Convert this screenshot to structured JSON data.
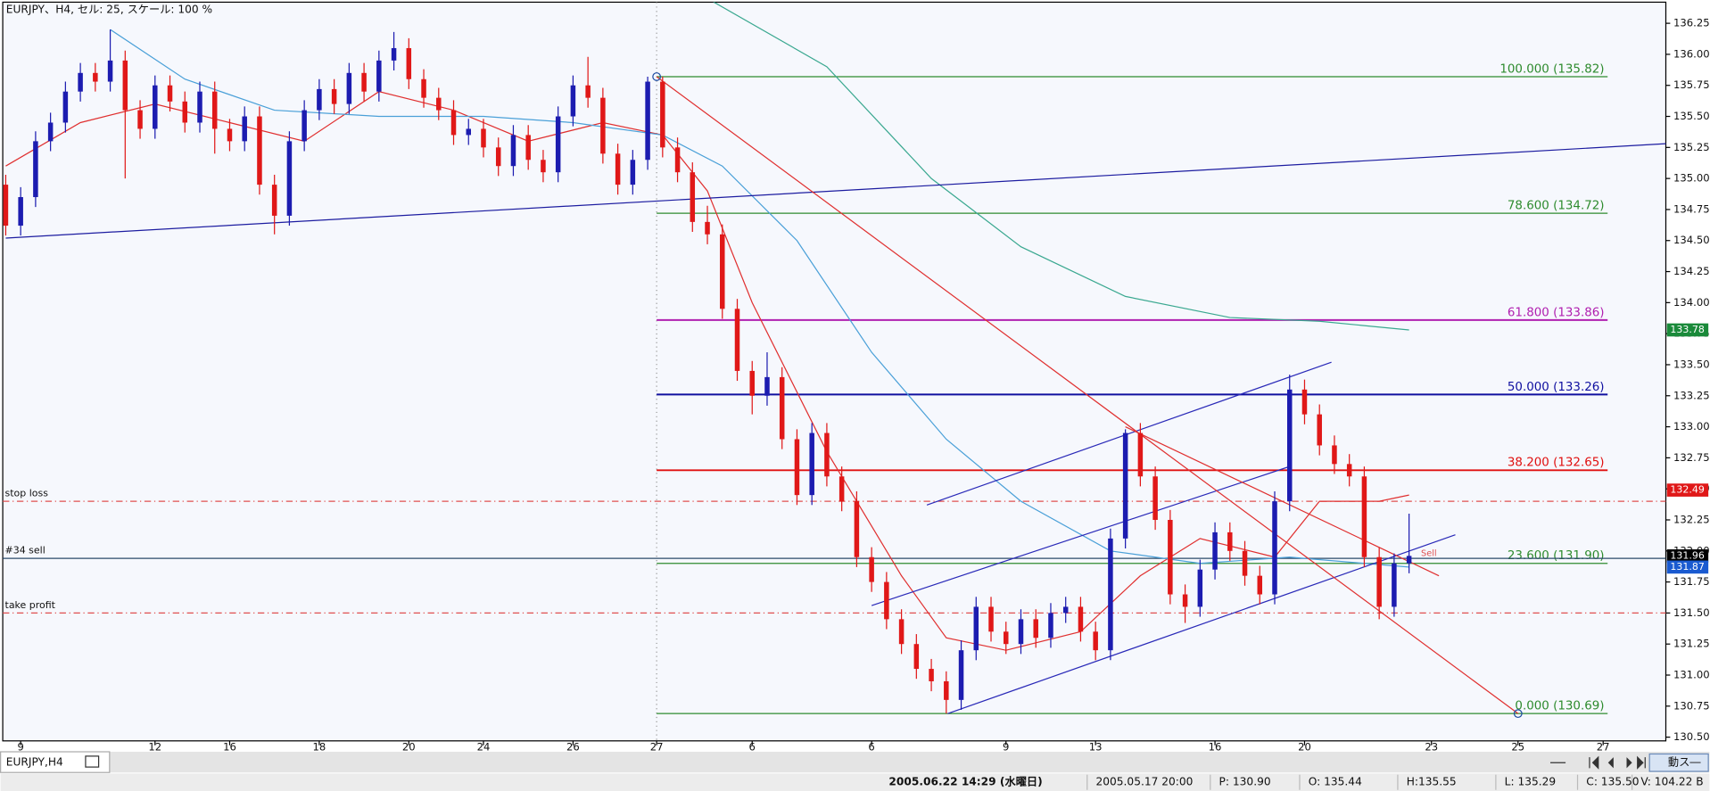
{
  "chart_data": {
    "type": "candlestick",
    "title": "EURJPY、H4, セル: 25, スケール: 100 %",
    "tab": "EURJPY,H4",
    "xlim": [
      -0.2,
      111.2
    ],
    "ylim": [
      130.47,
      136.42
    ],
    "up_color": "#1c1cb0",
    "down_color": "#e01818",
    "open": [
      134.95,
      134.62,
      134.85,
      135.3,
      135.45,
      135.7,
      135.85,
      135.78,
      135.95,
      135.55,
      135.4,
      135.75,
      135.62,
      135.45,
      135.7,
      135.4,
      135.3,
      135.5,
      134.95,
      134.7,
      135.3,
      135.55,
      135.72,
      135.6,
      135.85,
      135.7,
      135.95,
      136.05,
      135.8,
      135.65,
      135.55,
      135.35,
      135.4,
      135.25,
      135.1,
      135.35,
      135.15,
      135.05,
      135.5,
      135.75,
      135.65,
      135.2,
      134.95,
      135.15,
      135.78,
      135.25,
      135.05,
      134.65,
      134.55,
      133.95,
      133.45,
      133.25,
      133.4,
      132.9,
      132.45,
      132.95,
      132.6,
      132.4,
      131.95,
      131.75,
      131.45,
      131.25,
      131.05,
      130.95,
      130.8,
      131.2,
      131.55,
      131.35,
      131.25,
      131.45,
      131.3,
      131.5,
      131.55,
      131.35,
      131.2,
      132.1,
      132.95,
      132.6,
      132.25,
      131.65,
      131.55,
      131.85,
      132.15,
      132.0,
      131.8,
      131.65,
      132.4,
      133.3,
      133.1,
      132.85,
      132.7,
      132.6,
      131.95,
      131.55,
      131.9
    ],
    "high": [
      135.03,
      134.93,
      135.38,
      135.53,
      135.78,
      135.93,
      135.93,
      136.2,
      136.03,
      135.63,
      135.83,
      135.83,
      135.7,
      135.78,
      135.78,
      135.48,
      135.58,
      135.58,
      135.03,
      135.38,
      135.63,
      135.8,
      135.8,
      135.93,
      135.93,
      136.03,
      136.18,
      136.13,
      135.88,
      135.73,
      135.63,
      135.48,
      135.48,
      135.33,
      135.43,
      135.43,
      135.23,
      135.58,
      135.83,
      135.98,
      135.73,
      135.28,
      135.23,
      135.82,
      135.82,
      135.33,
      135.13,
      134.78,
      134.63,
      134.03,
      133.53,
      133.6,
      133.48,
      132.98,
      133.03,
      133.03,
      132.68,
      132.48,
      132.03,
      131.83,
      131.53,
      131.33,
      131.13,
      131.03,
      131.28,
      131.63,
      131.63,
      131.43,
      131.53,
      131.53,
      131.58,
      131.63,
      131.63,
      131.43,
      132.18,
      132.98,
      133.03,
      132.68,
      132.33,
      131.73,
      131.93,
      132.23,
      132.23,
      132.08,
      131.88,
      132.48,
      133.42,
      133.38,
      133.18,
      132.93,
      132.78,
      132.68,
      132.03,
      131.98,
      132.3
    ],
    "low": [
      134.54,
      134.54,
      134.77,
      135.22,
      135.37,
      135.62,
      135.7,
      135.7,
      135.0,
      135.32,
      135.32,
      135.54,
      135.37,
      135.37,
      135.2,
      135.22,
      135.22,
      134.87,
      134.55,
      134.62,
      135.22,
      135.47,
      135.52,
      135.52,
      135.62,
      135.62,
      135.87,
      135.72,
      135.57,
      135.47,
      135.27,
      135.27,
      135.17,
      135.02,
      135.02,
      135.07,
      134.97,
      134.97,
      135.42,
      135.57,
      135.12,
      134.87,
      134.87,
      135.07,
      135.17,
      134.97,
      134.57,
      134.47,
      133.87,
      133.37,
      133.1,
      133.17,
      132.82,
      132.37,
      132.37,
      132.52,
      132.32,
      131.87,
      131.67,
      131.37,
      131.17,
      130.97,
      130.87,
      130.69,
      130.72,
      131.12,
      131.27,
      131.17,
      131.17,
      131.22,
      131.22,
      131.42,
      131.27,
      131.12,
      131.12,
      132.02,
      132.52,
      132.17,
      131.57,
      131.42,
      131.47,
      131.77,
      131.92,
      131.72,
      131.57,
      131.57,
      132.32,
      133.02,
      132.77,
      132.62,
      132.52,
      131.87,
      131.45,
      131.47,
      131.82
    ],
    "close": [
      134.62,
      134.85,
      135.3,
      135.45,
      135.7,
      135.85,
      135.78,
      135.95,
      135.55,
      135.4,
      135.75,
      135.62,
      135.45,
      135.7,
      135.4,
      135.3,
      135.5,
      134.95,
      134.7,
      135.3,
      135.55,
      135.72,
      135.6,
      135.85,
      135.7,
      135.95,
      136.05,
      135.8,
      135.65,
      135.55,
      135.35,
      135.4,
      135.25,
      135.1,
      135.35,
      135.15,
      135.05,
      135.5,
      135.75,
      135.65,
      135.2,
      134.95,
      135.15,
      135.78,
      135.25,
      135.05,
      134.65,
      134.55,
      133.95,
      133.45,
      133.25,
      133.4,
      132.9,
      132.45,
      132.95,
      132.6,
      132.4,
      131.95,
      131.75,
      131.45,
      131.25,
      131.05,
      130.95,
      130.8,
      131.2,
      131.55,
      131.35,
      131.25,
      131.45,
      131.3,
      131.5,
      131.55,
      131.35,
      131.2,
      132.1,
      132.95,
      132.6,
      132.25,
      131.65,
      131.55,
      131.85,
      132.15,
      132.0,
      131.8,
      131.65,
      132.4,
      133.3,
      133.1,
      132.85,
      132.7,
      132.6,
      131.95,
      131.55,
      131.9,
      131.96
    ],
    "yticks": [
      136.25,
      {
        "value": 136.0,
        "label": "136.00"
      },
      135.75,
      {
        "value": 135.5,
        "label": "135.50"
      },
      135.25,
      {
        "value": 135.0,
        "label": "135.00"
      },
      134.75,
      {
        "value": 134.5,
        "label": "134.50"
      },
      134.25,
      {
        "value": 134.0,
        "label": "134.00"
      },
      133.75,
      {
        "value": 133.5,
        "label": "133.50"
      },
      133.25,
      {
        "value": 133.0,
        "label": "133.00"
      },
      132.75,
      {
        "value": 132.5,
        "label": "132.50"
      },
      132.25,
      {
        "value": 132.0,
        "label": "132.00"
      },
      131.75,
      {
        "value": 131.5,
        "label": "131.50"
      },
      131.25,
      {
        "value": 131.0,
        "label": "131.00"
      },
      130.75,
      {
        "value": 130.5,
        "label": "130.50"
      }
    ],
    "xticks": [
      {
        "value": 1,
        "label": "9"
      },
      {
        "value": 10,
        "label": "12"
      },
      {
        "value": 15,
        "label": "16"
      },
      {
        "value": 21,
        "label": "18"
      },
      {
        "value": 27,
        "label": "20"
      },
      {
        "value": 32,
        "label": "24"
      },
      {
        "value": 38,
        "label": "26"
      },
      {
        "value": 43.6,
        "label": "27"
      },
      {
        "value": 50,
        "label": "6"
      },
      {
        "value": 58,
        "label": "6"
      },
      {
        "value": 67,
        "label": "9"
      },
      {
        "value": 73,
        "label": "13"
      },
      {
        "value": 81,
        "label": "16"
      },
      {
        "value": 87,
        "label": "20"
      },
      {
        "value": 95.5,
        "label": "23"
      },
      {
        "value": 101.3,
        "label": "25"
      },
      {
        "value": 107,
        "label": "27"
      }
    ],
    "moving_averages": [
      {
        "color": "#e03030",
        "x": [
          0,
          5,
          10,
          15,
          20,
          25,
          30,
          35,
          40,
          44,
          47,
          50,
          55,
          60,
          63,
          67,
          72,
          76,
          80,
          85,
          88,
          92,
          94
        ],
        "values": [
          135.1,
          135.45,
          135.6,
          135.45,
          135.3,
          135.7,
          135.55,
          135.3,
          135.45,
          135.35,
          134.9,
          134.0,
          132.8,
          131.8,
          131.3,
          131.2,
          131.35,
          131.8,
          132.1,
          131.95,
          132.4,
          132.4,
          132.45
        ]
      },
      {
        "color": "#4aa0d8",
        "x": [
          7,
          12,
          18,
          25,
          32,
          38,
          44,
          48,
          53,
          58,
          63,
          68,
          74,
          80,
          86,
          94
        ],
        "values": [
          136.2,
          135.8,
          135.55,
          135.5,
          135.5,
          135.45,
          135.35,
          135.1,
          134.5,
          133.6,
          132.9,
          132.4,
          132.0,
          131.9,
          131.95,
          131.87
        ]
      },
      {
        "color": "#3aa890",
        "x": [
          47,
          55,
          62,
          68,
          75,
          82,
          88,
          94
        ],
        "values": [
          136.45,
          135.9,
          135.0,
          134.45,
          134.05,
          133.88,
          133.85,
          133.78
        ]
      }
    ],
    "trendlines": [
      {
        "color": "#1c1ca0",
        "x": [
          0,
          111.2
        ],
        "values": [
          134.52,
          135.28
        ]
      },
      {
        "color": "#2a2ab8",
        "x": [
          63.1,
          97.1
        ],
        "values": [
          130.69,
          132.13
        ]
      },
      {
        "color": "#2a2ab8",
        "x": [
          61.7,
          88.8
        ],
        "values": [
          132.37,
          133.52
        ]
      },
      {
        "color": "#2a2ab8",
        "x": [
          58,
          86
        ],
        "values": [
          131.56,
          132.68
        ]
      },
      {
        "color": "#e03030",
        "x": [
          43.6,
          101.3
        ],
        "values": [
          135.82,
          130.69
        ]
      },
      {
        "color": "#e03030",
        "x": [
          75,
          96
        ],
        "values": [
          133.0,
          131.8
        ]
      }
    ],
    "fib_range": [
      43.6,
      107.3
    ],
    "fib_levels": [
      {
        "label": "100.000 (135.82)",
        "value": 135.82,
        "color": "#2e8b2e"
      },
      {
        "label": "78.600 (134.72)",
        "value": 134.72,
        "color": "#2e8b2e"
      },
      {
        "label": "61.800 (133.86)",
        "value": 133.86,
        "color": "#b020b0"
      },
      {
        "label": "50.000 (133.26)",
        "value": 133.26,
        "color": "#1010a0"
      },
      {
        "label": "38.200 (132.65)",
        "value": 132.65,
        "color": "#e01010"
      },
      {
        "label": "23.600 (131.90)",
        "value": 131.9,
        "color": "#2e8b2e"
      },
      {
        "label": "0.000 (130.69)",
        "value": 130.69,
        "color": "#2e8b2e"
      }
    ],
    "order_lines": [
      {
        "label": "stop loss",
        "value": 132.4,
        "color": "#e05050",
        "dash": true
      },
      {
        "label": "#34 sell",
        "value": 131.94,
        "color": "#2a4a6a",
        "dash": false
      },
      {
        "label": "take profit",
        "value": 131.5,
        "color": "#e05050",
        "dash": true
      }
    ],
    "price_markers": [
      {
        "value": 133.78,
        "color": "#1a8a3a"
      },
      {
        "value": 132.49,
        "color": "#e01818"
      },
      {
        "value": 131.96,
        "color": "#000000"
      },
      {
        "value": 131.87,
        "color": "#1a5ad0"
      }
    ],
    "annotations": [
      {
        "text": "Sell",
        "x": 94.8,
        "y": 131.98
      }
    ],
    "status_bar": [
      "2005.06.22 14:29 (水曜日)",
      "2005.05.17 20:00",
      "P: 130.90",
      "O: 135.44",
      "H:135.55",
      "L: 135.29",
      "C: 135.50",
      "V: 104.22 B"
    ],
    "button": "動ス―"
  }
}
